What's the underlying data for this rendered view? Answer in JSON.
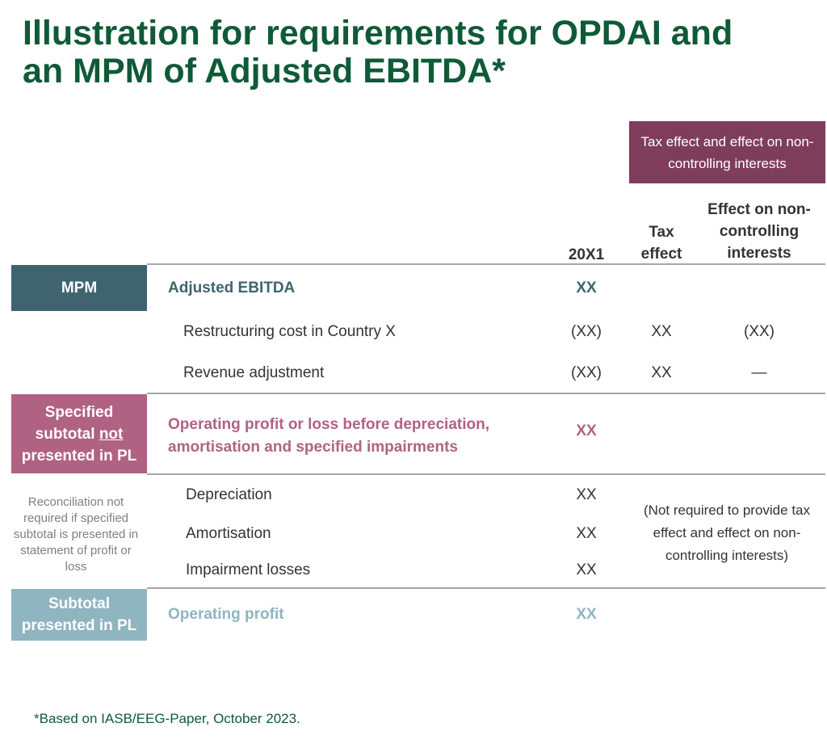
{
  "title": {
    "line1": "Illustration for requirements for OPDAI and",
    "line2": "an MPM of Adjusted EBITDA*"
  },
  "tax_banner": "Tax effect and effect on non-controlling interests",
  "headers": {
    "year": "20X1",
    "tax_line1": "Tax",
    "tax_line2": "effect",
    "nci_line1": "Effect on non-",
    "nci_line2": "controlling",
    "nci_line3": "interests"
  },
  "boxes": {
    "mpm": "MPM",
    "specified_line1": "Specified",
    "specified_line2_pre": "subtotal ",
    "specified_line2_u": "not",
    "specified_line3": "presented in PL",
    "subtotal_line1": "Subtotal",
    "subtotal_line2": "presented in PL"
  },
  "reconciliation_note": "Reconciliation not required if specified subtotal is presented in statement of profit or loss",
  "rows": {
    "adjusted_ebitda": {
      "label": "Adjusted EBITDA",
      "year": "XX"
    },
    "restructuring": {
      "label": "Restructuring cost in Country X",
      "year": "(XX)",
      "tax": "XX",
      "nci": "(XX)"
    },
    "revenue_adj": {
      "label": "Revenue adjustment",
      "year": "(XX)",
      "tax": "XX",
      "nci": "—"
    },
    "opdai_line1": "Operating profit or loss before depreciation,",
    "opdai_line2": "amortisation and specified impairments",
    "opdai_year": "XX",
    "depreciation": {
      "label": "Depreciation",
      "year": "XX"
    },
    "amortisation": {
      "label": "Amortisation",
      "year": "XX"
    },
    "impairment": {
      "label": "Impairment losses",
      "year": "XX"
    },
    "operating_profit": {
      "label": "Operating profit",
      "year": "XX"
    }
  },
  "not_required_note": "(Not required to provide tax effect and effect on non-controlling interests)",
  "footer": "*Based on IASB/EEG-Paper, October 2023.",
  "colors": {
    "title_green": "#0f5a37",
    "banner_purple": "#7f3d5c",
    "mpm_teal": "#3f6470",
    "specified_pink": "#b06283",
    "subtotal_blue": "#8fb5c0",
    "rule_grey": "#a6a6a6"
  }
}
